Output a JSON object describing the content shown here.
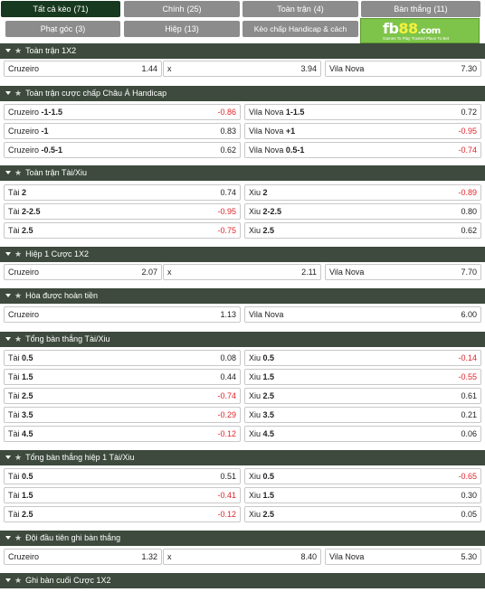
{
  "tabs": [
    {
      "label": "Tất cả kèo",
      "count": "(71)",
      "active": true
    },
    {
      "label": "Chính",
      "count": "(25)"
    },
    {
      "label": "Toàn trận",
      "count": "(4)"
    },
    {
      "label": "Bàn thắng",
      "count": "(11)"
    },
    {
      "label": "Phạt góc",
      "count": "(3)"
    },
    {
      "label": "Hiệp",
      "count": "(13)"
    },
    {
      "label": "Kèo chấp Handicap & cách biệt",
      "count": "(3)"
    }
  ],
  "logo": {
    "brand": "fb",
    "number": "88",
    "domain": ".com",
    "tagline": "Games To Play   Trusted Place To Bet"
  },
  "colors": {
    "header_bg": "#3d4a3d",
    "active_tab": "#17391f",
    "tab": "#8c8c8c",
    "negative": "#e0252b",
    "logo_green": "#7ec44a"
  },
  "sections": [
    {
      "title": "Toàn trận 1X2",
      "rows": [
        [
          {
            "name": "Cruzeiro",
            "handicap": "",
            "odd": "1.44"
          },
          {
            "name": "x",
            "handicap": "",
            "odd": "3.94"
          },
          {
            "name": "Vila Nova",
            "handicap": "",
            "odd": "7.30"
          }
        ]
      ]
    },
    {
      "title": "Toàn trận cược chấp Châu Á Handicap",
      "rows": [
        [
          {
            "name": "Cruzeiro",
            "handicap": "-1-1.5",
            "odd": "-0.86"
          },
          {
            "name": "Vila Nova",
            "handicap": "1-1.5",
            "odd": "0.72"
          }
        ],
        [
          {
            "name": "Cruzeiro",
            "handicap": "-1",
            "odd": "0.83"
          },
          {
            "name": "Vila Nova",
            "handicap": "+1",
            "odd": "-0.95"
          }
        ],
        [
          {
            "name": "Cruzeiro",
            "handicap": "-0.5-1",
            "odd": "0.62"
          },
          {
            "name": "Vila Nova",
            "handicap": "0.5-1",
            "odd": "-0.74"
          }
        ]
      ]
    },
    {
      "title": "Toàn trận Tài/Xiu",
      "rows": [
        [
          {
            "name": "Tài",
            "handicap": "2",
            "odd": "0.74"
          },
          {
            "name": "Xiu",
            "handicap": "2",
            "odd": "-0.89"
          }
        ],
        [
          {
            "name": "Tài",
            "handicap": "2-2.5",
            "odd": "-0.95"
          },
          {
            "name": "Xiu",
            "handicap": "2-2.5",
            "odd": "0.80"
          }
        ],
        [
          {
            "name": "Tài",
            "handicap": "2.5",
            "odd": "-0.75"
          },
          {
            "name": "Xiu",
            "handicap": "2.5",
            "odd": "0.62"
          }
        ]
      ]
    },
    {
      "title": "Hiệp 1 Cược 1X2",
      "rows": [
        [
          {
            "name": "Cruzeiro",
            "handicap": "",
            "odd": "2.07"
          },
          {
            "name": "x",
            "handicap": "",
            "odd": "2.11"
          },
          {
            "name": "Vila Nova",
            "handicap": "",
            "odd": "7.70"
          }
        ]
      ]
    },
    {
      "title": "Hòa được hoàn tiền",
      "rows": [
        [
          {
            "name": "Cruzeiro",
            "handicap": "",
            "odd": "1.13"
          },
          {
            "name": "Vila Nova",
            "handicap": "",
            "odd": "6.00"
          }
        ]
      ]
    },
    {
      "title": "Tổng bàn thắng Tài/Xiu",
      "rows": [
        [
          {
            "name": "Tài",
            "handicap": "0.5",
            "odd": "0.08"
          },
          {
            "name": "Xiu",
            "handicap": "0.5",
            "odd": "-0.14"
          }
        ],
        [
          {
            "name": "Tài",
            "handicap": "1.5",
            "odd": "0.44"
          },
          {
            "name": "Xiu",
            "handicap": "1.5",
            "odd": "-0.55"
          }
        ],
        [
          {
            "name": "Tài",
            "handicap": "2.5",
            "odd": "-0.74"
          },
          {
            "name": "Xiu",
            "handicap": "2.5",
            "odd": "0.61"
          }
        ],
        [
          {
            "name": "Tài",
            "handicap": "3.5",
            "odd": "-0.29"
          },
          {
            "name": "Xiu",
            "handicap": "3.5",
            "odd": "0.21"
          }
        ],
        [
          {
            "name": "Tài",
            "handicap": "4.5",
            "odd": "-0.12"
          },
          {
            "name": "Xiu",
            "handicap": "4.5",
            "odd": "0.06"
          }
        ]
      ]
    },
    {
      "title": "Tổng bàn thắng hiệp 1 Tài/Xiu",
      "rows": [
        [
          {
            "name": "Tài",
            "handicap": "0.5",
            "odd": "0.51"
          },
          {
            "name": "Xiu",
            "handicap": "0.5",
            "odd": "-0.65"
          }
        ],
        [
          {
            "name": "Tài",
            "handicap": "1.5",
            "odd": "-0.41"
          },
          {
            "name": "Xiu",
            "handicap": "1.5",
            "odd": "0.30"
          }
        ],
        [
          {
            "name": "Tài",
            "handicap": "2.5",
            "odd": "-0.12"
          },
          {
            "name": "Xiu",
            "handicap": "2.5",
            "odd": "0.05"
          }
        ]
      ]
    },
    {
      "title": "Đội đầu tiên ghi bàn thắng",
      "rows": [
        [
          {
            "name": "Cruzeiro",
            "handicap": "",
            "odd": "1.32"
          },
          {
            "name": "x",
            "handicap": "",
            "odd": "8.40"
          },
          {
            "name": "Vila Nova",
            "handicap": "",
            "odd": "5.30"
          }
        ]
      ]
    },
    {
      "title": "Ghi bàn cuối Cược 1X2",
      "rows": []
    }
  ]
}
